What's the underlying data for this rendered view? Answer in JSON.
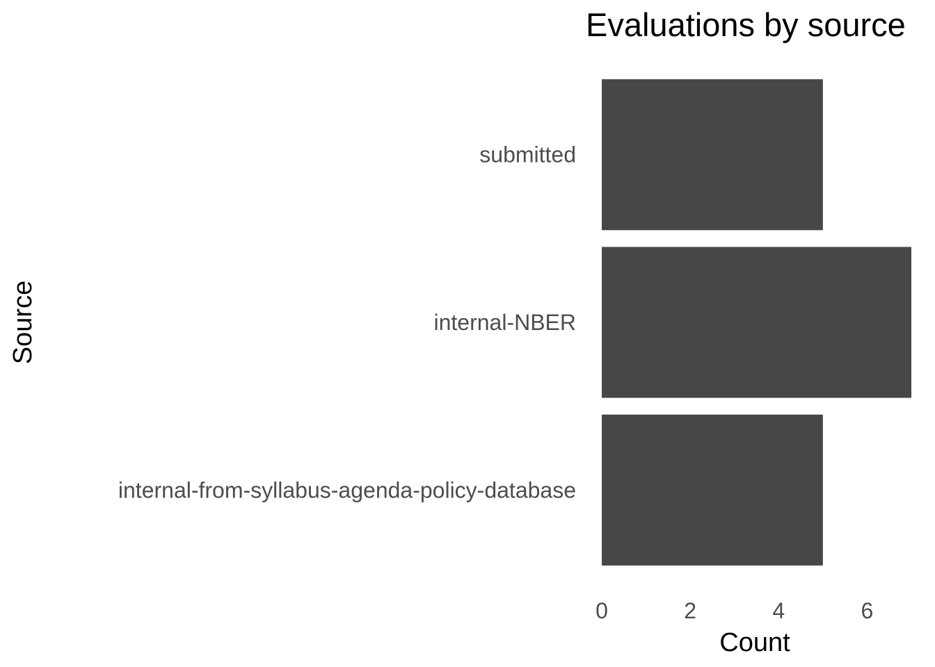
{
  "chart_data": {
    "type": "bar",
    "orientation": "horizontal",
    "title": "Evaluations by source",
    "xlabel": "Count",
    "ylabel": "Source",
    "categories": [
      "internal-from-syllabus-agenda-policy-database",
      "internal-NBER",
      "submitted"
    ],
    "values": [
      5,
      7,
      5
    ],
    "xlim": [
      0,
      7
    ],
    "x_ticks": [
      "0",
      "2",
      "4",
      "6"
    ],
    "grid": false,
    "bar_color": "#474747"
  }
}
